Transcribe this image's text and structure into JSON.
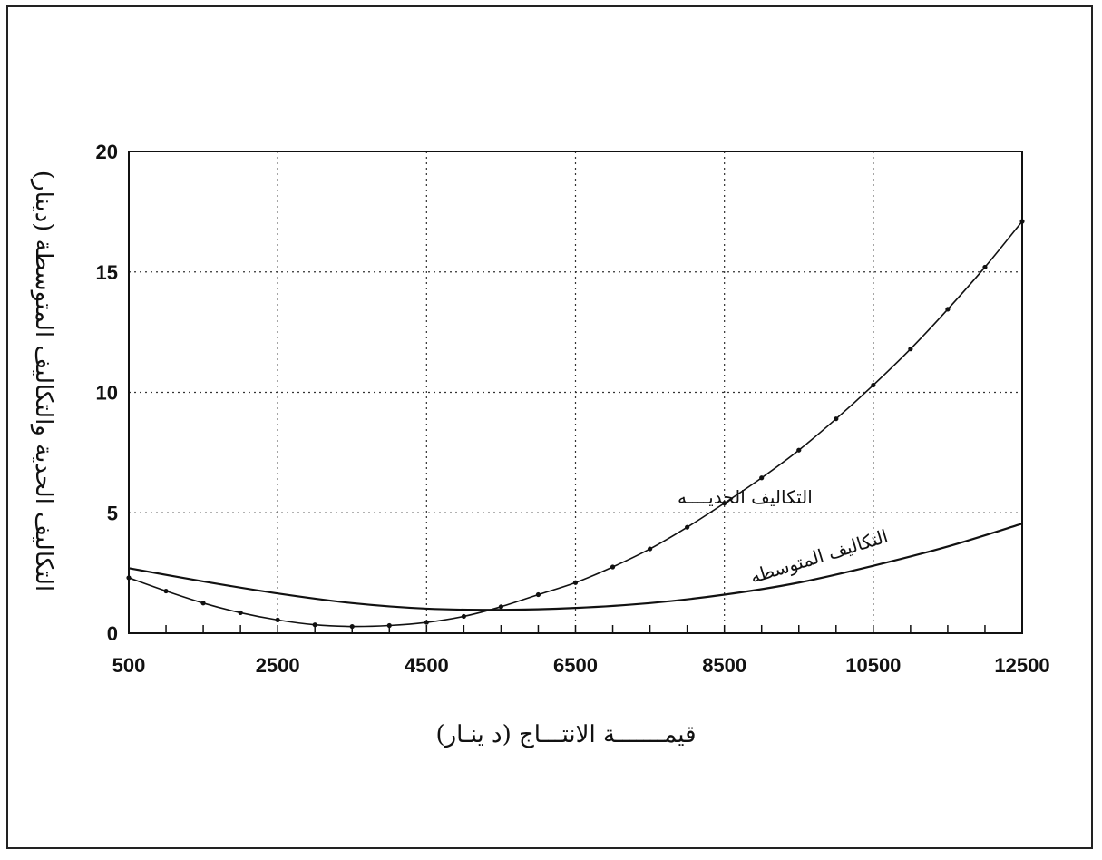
{
  "chart_data": {
    "type": "line",
    "title": "",
    "xlabel": "قيمـــــــة الانتـــاج (د ينـار)",
    "ylabel": "التكاليف الحدية والتكاليف المتوسطة (دينار)",
    "xlim": [
      500,
      12500
    ],
    "ylim": [
      0,
      20
    ],
    "x_ticks": [
      "500",
      "2500",
      "4500",
      "6500",
      "8500",
      "10500",
      "12500"
    ],
    "y_ticks": [
      "0",
      "5",
      "10",
      "15",
      "20"
    ],
    "grid": true,
    "series": [
      {
        "name": "التكاليف الحديــــه",
        "marker": "dot",
        "x": [
          500,
          1000,
          1500,
          2000,
          2500,
          3000,
          3500,
          4000,
          4500,
          5000,
          5500,
          6000,
          6500,
          7000,
          7500,
          8000,
          8500,
          9000,
          9500,
          10000,
          10500,
          11000,
          11500,
          12000,
          12500
        ],
        "y": [
          2.3,
          1.75,
          1.25,
          0.85,
          0.55,
          0.35,
          0.28,
          0.32,
          0.45,
          0.7,
          1.1,
          1.6,
          2.1,
          2.75,
          3.5,
          4.4,
          5.4,
          6.45,
          7.6,
          8.9,
          10.3,
          11.8,
          13.45,
          15.2,
          17.1
        ]
      },
      {
        "name": "التكاليف المتوسطه",
        "marker": "none",
        "x": [
          500,
          1500,
          2500,
          3500,
          4500,
          5500,
          6500,
          7500,
          8500,
          9500,
          10500,
          11500,
          12500
        ],
        "y": [
          2.7,
          2.15,
          1.65,
          1.25,
          1.02,
          0.97,
          1.05,
          1.25,
          1.6,
          2.1,
          2.8,
          3.6,
          4.55
        ]
      }
    ]
  }
}
